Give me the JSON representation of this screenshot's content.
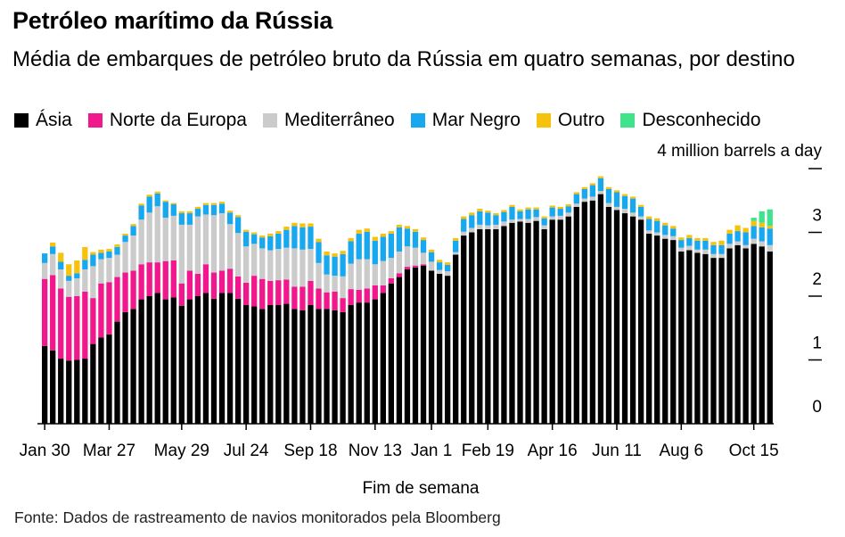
{
  "title": "Petróleo marítimo da Rússia",
  "subtitle": "Média de embarques de petróleo bruto da Rússia em quatro semanas, por destino",
  "source": "Fonte: Dados de rastreamento de navios monitorados pela Bloomberg",
  "legend": [
    {
      "label": "Ásia",
      "color": "#000000"
    },
    {
      "label": "Norte da Europa",
      "color": "#f0188c"
    },
    {
      "label": "Mediterrâneo",
      "color": "#cbcbcb"
    },
    {
      "label": "Mar Negro",
      "color": "#18a8f0"
    },
    {
      "label": "Outro",
      "color": "#f7c20c"
    },
    {
      "label": "Desconhecido",
      "color": "#3fe38c"
    }
  ],
  "chart_data": {
    "type": "bar",
    "stacked": true,
    "xlabel": "Fim de semana",
    "yunit": "4 million barrels a day",
    "ylim": [
      0,
      4
    ],
    "yticks": [
      "0",
      "1",
      "2",
      "3"
    ],
    "xtick_labels": [
      "Jan 30",
      "Mar 27",
      "May 29",
      "Jul 24",
      "Sep 18",
      "Nov 13",
      "Jan 1",
      "Feb 19",
      "Apr 16",
      "Jun 11",
      "Aug 6",
      "Oct 15"
    ],
    "xtick_index": [
      0,
      8,
      17,
      25,
      33,
      41,
      48,
      55,
      63,
      71,
      79,
      88
    ],
    "series": [
      {
        "name": "Ásia",
        "color": "#000000",
        "values": [
          1.22,
          1.15,
          1.02,
          0.99,
          1.0,
          1.02,
          1.25,
          1.35,
          1.4,
          1.6,
          1.75,
          1.8,
          1.95,
          2.0,
          2.05,
          1.95,
          1.98,
          1.85,
          1.95,
          2.0,
          2.05,
          1.96,
          2.05,
          2.05,
          1.96,
          1.86,
          1.84,
          1.8,
          1.86,
          1.86,
          1.88,
          1.8,
          1.78,
          1.86,
          1.8,
          1.8,
          1.78,
          1.75,
          1.86,
          1.9,
          1.9,
          1.95,
          2.05,
          2.2,
          2.3,
          2.42,
          2.45,
          2.48,
          2.4,
          2.35,
          2.32,
          2.65,
          2.95,
          3.0,
          3.05,
          3.05,
          3.05,
          3.1,
          3.15,
          3.17,
          3.15,
          3.18,
          3.05,
          3.2,
          3.2,
          3.25,
          3.4,
          3.48,
          3.5,
          3.6,
          3.4,
          3.35,
          3.3,
          3.25,
          3.2,
          2.98,
          2.95,
          2.9,
          2.88,
          2.7,
          2.72,
          2.68,
          2.66,
          2.6,
          2.6,
          2.75,
          2.8,
          2.75,
          2.82,
          2.78,
          2.7
        ]
      },
      {
        "name": "Norte da Europa",
        "color": "#f0188c",
        "values": [
          1.05,
          1.18,
          1.1,
          1.0,
          1.0,
          1.05,
          0.72,
          0.85,
          0.82,
          0.7,
          0.62,
          0.6,
          0.55,
          0.53,
          0.48,
          0.6,
          0.58,
          0.35,
          0.45,
          0.35,
          0.45,
          0.41,
          0.35,
          0.38,
          0.35,
          0.35,
          0.48,
          0.47,
          0.38,
          0.39,
          0.38,
          0.35,
          0.37,
          0.38,
          0.32,
          0.26,
          0.29,
          0.22,
          0.25,
          0.2,
          0.22,
          0.22,
          0.12,
          0.08,
          0.06,
          0.04,
          0.03,
          0.02,
          0,
          0,
          0,
          0,
          0,
          0,
          0,
          0,
          0,
          0,
          0,
          0,
          0,
          0,
          0,
          0,
          0,
          0,
          0,
          0,
          0,
          0,
          0,
          0,
          0,
          0,
          0,
          0,
          0,
          0,
          0,
          0,
          0,
          0,
          0,
          0,
          0,
          0,
          0,
          0,
          0,
          0,
          0
        ]
      },
      {
        "name": "Mediterrâneo",
        "color": "#cbcbcb",
        "values": [
          0.25,
          0.33,
          0.3,
          0.25,
          0.28,
          0.35,
          0.5,
          0.38,
          0.38,
          0.35,
          0.48,
          0.55,
          0.7,
          0.78,
          0.88,
          0.68,
          0.7,
          0.92,
          0.72,
          0.9,
          0.78,
          0.9,
          0.9,
          0.7,
          0.68,
          0.57,
          0.5,
          0.48,
          0.48,
          0.49,
          0.5,
          0.6,
          0.58,
          0.5,
          0.4,
          0.28,
          0.25,
          0.34,
          0.4,
          0.48,
          0.46,
          0.33,
          0.38,
          0.32,
          0.34,
          0.32,
          0.28,
          0.18,
          0.14,
          0.06,
          0.07,
          0.04,
          0.06,
          0.07,
          0.07,
          0.06,
          0.07,
          0.07,
          0.05,
          0.04,
          0.06,
          0.06,
          0.06,
          0.05,
          0.06,
          0.06,
          0.05,
          0.05,
          0.06,
          0.05,
          0.06,
          0.05,
          0.07,
          0.06,
          0.05,
          0.05,
          0.05,
          0.06,
          0.06,
          0.06,
          0.07,
          0.05,
          0.07,
          0.06,
          0.06,
          0.07,
          0.06,
          0.05,
          0.08,
          0.08,
          0.1
        ]
      },
      {
        "name": "Mar Negro",
        "color": "#18a8f0",
        "values": [
          0.15,
          0.12,
          0.12,
          0.08,
          0.08,
          0.15,
          0.18,
          0.1,
          0.1,
          0.12,
          0.1,
          0.15,
          0.22,
          0.25,
          0.2,
          0.25,
          0.18,
          0.18,
          0.18,
          0.12,
          0.15,
          0.16,
          0.15,
          0.18,
          0.25,
          0.23,
          0.15,
          0.17,
          0.22,
          0.24,
          0.28,
          0.35,
          0.35,
          0.35,
          0.33,
          0.3,
          0.3,
          0.35,
          0.35,
          0.4,
          0.43,
          0.37,
          0.38,
          0.38,
          0.38,
          0.28,
          0.25,
          0.2,
          0.15,
          0.12,
          0.1,
          0.18,
          0.2,
          0.2,
          0.21,
          0.2,
          0.15,
          0.15,
          0.2,
          0.12,
          0.15,
          0.12,
          0.11,
          0.14,
          0.11,
          0.1,
          0.15,
          0.15,
          0.18,
          0.2,
          0.22,
          0.23,
          0.2,
          0.22,
          0.15,
          0.18,
          0.18,
          0.15,
          0.12,
          0.12,
          0.12,
          0.14,
          0.14,
          0.14,
          0.14,
          0.16,
          0.16,
          0.2,
          0.2,
          0.22,
          0.26
        ]
      },
      {
        "name": "Outro",
        "color": "#f7c20c",
        "values": [
          0,
          0.06,
          0.14,
          0.18,
          0.2,
          0.2,
          0.04,
          0.05,
          0.04,
          0.04,
          0.03,
          0.03,
          0.03,
          0.03,
          0.03,
          0.02,
          0.02,
          0.03,
          0.03,
          0.03,
          0.03,
          0.03,
          0.03,
          0.03,
          0.03,
          0.03,
          0.03,
          0.03,
          0.04,
          0.04,
          0.05,
          0.05,
          0.06,
          0.05,
          0.05,
          0.06,
          0.05,
          0.05,
          0.05,
          0.06,
          0.05,
          0.06,
          0.05,
          0.04,
          0.04,
          0.04,
          0.04,
          0.04,
          0.04,
          0.04,
          0.04,
          0.04,
          0.04,
          0.04,
          0.04,
          0.03,
          0.03,
          0.03,
          0.03,
          0.03,
          0.03,
          0.03,
          0.03,
          0.03,
          0.03,
          0.03,
          0.03,
          0.03,
          0.03,
          0.03,
          0.03,
          0.03,
          0.03,
          0.03,
          0.03,
          0.04,
          0.04,
          0.04,
          0.04,
          0.04,
          0.05,
          0.04,
          0.04,
          0.05,
          0.07,
          0.06,
          0.09,
          0.07,
          0.08,
          0.07,
          0.04
        ]
      },
      {
        "name": "Desconhecido",
        "color": "#3fe38c",
        "values": [
          0,
          0,
          0,
          0,
          0,
          0,
          0,
          0,
          0,
          0,
          0,
          0,
          0,
          0,
          0,
          0,
          0,
          0,
          0,
          0,
          0,
          0,
          0,
          0,
          0,
          0,
          0,
          0,
          0,
          0,
          0,
          0,
          0,
          0,
          0,
          0,
          0,
          0,
          0,
          0,
          0,
          0,
          0,
          0,
          0,
          0,
          0,
          0,
          0,
          0,
          0,
          0,
          0,
          0,
          0,
          0,
          0,
          0,
          0,
          0,
          0,
          0,
          0,
          0,
          0,
          0,
          0,
          0,
          0,
          0,
          0,
          0,
          0,
          0,
          0,
          0,
          0,
          0,
          0,
          0,
          0,
          0,
          0,
          0,
          0,
          0,
          0,
          0,
          0.05,
          0.18,
          0.26
        ]
      }
    ]
  }
}
